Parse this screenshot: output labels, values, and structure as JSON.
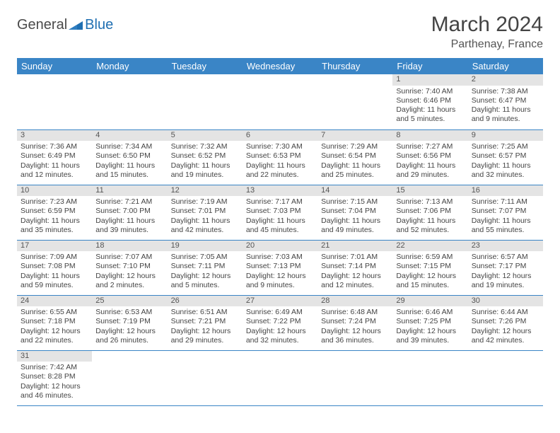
{
  "logo": {
    "part1": "General",
    "part2": "Blue"
  },
  "title": "March 2024",
  "subtitle": "Parthenay, France",
  "colors": {
    "header_bg": "#3a85c6",
    "header_fg": "#ffffff",
    "daynum_bg": "#e4e4e4",
    "row_border": "#3a85c6",
    "text": "#444444",
    "logo_blue": "#1f6fb2"
  },
  "weekdays": [
    "Sunday",
    "Monday",
    "Tuesday",
    "Wednesday",
    "Thursday",
    "Friday",
    "Saturday"
  ],
  "weeks": [
    [
      null,
      null,
      null,
      null,
      null,
      {
        "n": "1",
        "sr": "Sunrise: 7:40 AM",
        "ss": "Sunset: 6:46 PM",
        "dl": "Daylight: 11 hours and 5 minutes."
      },
      {
        "n": "2",
        "sr": "Sunrise: 7:38 AM",
        "ss": "Sunset: 6:47 PM",
        "dl": "Daylight: 11 hours and 9 minutes."
      }
    ],
    [
      {
        "n": "3",
        "sr": "Sunrise: 7:36 AM",
        "ss": "Sunset: 6:49 PM",
        "dl": "Daylight: 11 hours and 12 minutes."
      },
      {
        "n": "4",
        "sr": "Sunrise: 7:34 AM",
        "ss": "Sunset: 6:50 PM",
        "dl": "Daylight: 11 hours and 15 minutes."
      },
      {
        "n": "5",
        "sr": "Sunrise: 7:32 AM",
        "ss": "Sunset: 6:52 PM",
        "dl": "Daylight: 11 hours and 19 minutes."
      },
      {
        "n": "6",
        "sr": "Sunrise: 7:30 AM",
        "ss": "Sunset: 6:53 PM",
        "dl": "Daylight: 11 hours and 22 minutes."
      },
      {
        "n": "7",
        "sr": "Sunrise: 7:29 AM",
        "ss": "Sunset: 6:54 PM",
        "dl": "Daylight: 11 hours and 25 minutes."
      },
      {
        "n": "8",
        "sr": "Sunrise: 7:27 AM",
        "ss": "Sunset: 6:56 PM",
        "dl": "Daylight: 11 hours and 29 minutes."
      },
      {
        "n": "9",
        "sr": "Sunrise: 7:25 AM",
        "ss": "Sunset: 6:57 PM",
        "dl": "Daylight: 11 hours and 32 minutes."
      }
    ],
    [
      {
        "n": "10",
        "sr": "Sunrise: 7:23 AM",
        "ss": "Sunset: 6:59 PM",
        "dl": "Daylight: 11 hours and 35 minutes."
      },
      {
        "n": "11",
        "sr": "Sunrise: 7:21 AM",
        "ss": "Sunset: 7:00 PM",
        "dl": "Daylight: 11 hours and 39 minutes."
      },
      {
        "n": "12",
        "sr": "Sunrise: 7:19 AM",
        "ss": "Sunset: 7:01 PM",
        "dl": "Daylight: 11 hours and 42 minutes."
      },
      {
        "n": "13",
        "sr": "Sunrise: 7:17 AM",
        "ss": "Sunset: 7:03 PM",
        "dl": "Daylight: 11 hours and 45 minutes."
      },
      {
        "n": "14",
        "sr": "Sunrise: 7:15 AM",
        "ss": "Sunset: 7:04 PM",
        "dl": "Daylight: 11 hours and 49 minutes."
      },
      {
        "n": "15",
        "sr": "Sunrise: 7:13 AM",
        "ss": "Sunset: 7:06 PM",
        "dl": "Daylight: 11 hours and 52 minutes."
      },
      {
        "n": "16",
        "sr": "Sunrise: 7:11 AM",
        "ss": "Sunset: 7:07 PM",
        "dl": "Daylight: 11 hours and 55 minutes."
      }
    ],
    [
      {
        "n": "17",
        "sr": "Sunrise: 7:09 AM",
        "ss": "Sunset: 7:08 PM",
        "dl": "Daylight: 11 hours and 59 minutes."
      },
      {
        "n": "18",
        "sr": "Sunrise: 7:07 AM",
        "ss": "Sunset: 7:10 PM",
        "dl": "Daylight: 12 hours and 2 minutes."
      },
      {
        "n": "19",
        "sr": "Sunrise: 7:05 AM",
        "ss": "Sunset: 7:11 PM",
        "dl": "Daylight: 12 hours and 5 minutes."
      },
      {
        "n": "20",
        "sr": "Sunrise: 7:03 AM",
        "ss": "Sunset: 7:13 PM",
        "dl": "Daylight: 12 hours and 9 minutes."
      },
      {
        "n": "21",
        "sr": "Sunrise: 7:01 AM",
        "ss": "Sunset: 7:14 PM",
        "dl": "Daylight: 12 hours and 12 minutes."
      },
      {
        "n": "22",
        "sr": "Sunrise: 6:59 AM",
        "ss": "Sunset: 7:15 PM",
        "dl": "Daylight: 12 hours and 15 minutes."
      },
      {
        "n": "23",
        "sr": "Sunrise: 6:57 AM",
        "ss": "Sunset: 7:17 PM",
        "dl": "Daylight: 12 hours and 19 minutes."
      }
    ],
    [
      {
        "n": "24",
        "sr": "Sunrise: 6:55 AM",
        "ss": "Sunset: 7:18 PM",
        "dl": "Daylight: 12 hours and 22 minutes."
      },
      {
        "n": "25",
        "sr": "Sunrise: 6:53 AM",
        "ss": "Sunset: 7:19 PM",
        "dl": "Daylight: 12 hours and 26 minutes."
      },
      {
        "n": "26",
        "sr": "Sunrise: 6:51 AM",
        "ss": "Sunset: 7:21 PM",
        "dl": "Daylight: 12 hours and 29 minutes."
      },
      {
        "n": "27",
        "sr": "Sunrise: 6:49 AM",
        "ss": "Sunset: 7:22 PM",
        "dl": "Daylight: 12 hours and 32 minutes."
      },
      {
        "n": "28",
        "sr": "Sunrise: 6:48 AM",
        "ss": "Sunset: 7:24 PM",
        "dl": "Daylight: 12 hours and 36 minutes."
      },
      {
        "n": "29",
        "sr": "Sunrise: 6:46 AM",
        "ss": "Sunset: 7:25 PM",
        "dl": "Daylight: 12 hours and 39 minutes."
      },
      {
        "n": "30",
        "sr": "Sunrise: 6:44 AM",
        "ss": "Sunset: 7:26 PM",
        "dl": "Daylight: 12 hours and 42 minutes."
      }
    ],
    [
      {
        "n": "31",
        "sr": "Sunrise: 7:42 AM",
        "ss": "Sunset: 8:28 PM",
        "dl": "Daylight: 12 hours and 46 minutes."
      },
      null,
      null,
      null,
      null,
      null,
      null
    ]
  ]
}
